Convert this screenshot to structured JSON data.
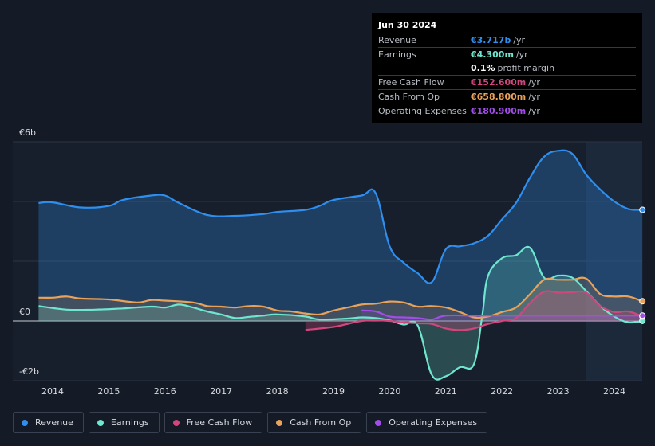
{
  "tooltip": {
    "date": "Jun 30 2024",
    "rows": [
      {
        "label": "Revenue",
        "value": "€3.717b",
        "unit": "/yr",
        "color": "#2e8ff0"
      },
      {
        "label": "Earnings",
        "value": "€4.300m",
        "unit": "/yr",
        "color": "#6ee6d0"
      },
      {
        "label": "",
        "value": "0.1%",
        "unit": "profit margin",
        "color": "#ffffff"
      },
      {
        "label": "Free Cash Flow",
        "value": "€152.600m",
        "unit": "/yr",
        "color": "#d1467c"
      },
      {
        "label": "Cash From Op",
        "value": "€658.800m",
        "unit": "/yr",
        "color": "#e8a25a"
      },
      {
        "label": "Operating Expenses",
        "value": "€180.900m",
        "unit": "/yr",
        "color": "#a24de8"
      }
    ]
  },
  "legend": [
    {
      "label": "Revenue",
      "color": "#2e8ff0"
    },
    {
      "label": "Earnings",
      "color": "#6ee6d0"
    },
    {
      "label": "Free Cash Flow",
      "color": "#d1467c"
    },
    {
      "label": "Cash From Op",
      "color": "#e8a25a"
    },
    {
      "label": "Operating Expenses",
      "color": "#a24de8"
    }
  ],
  "chart_data": {
    "type": "area",
    "title": "",
    "unit": "EUR billions",
    "ylim": [
      -2,
      6
    ],
    "xlim": [
      2013.75,
      2024.5
    ],
    "y_tick_labels": [
      {
        "value": 6,
        "label": "€6b"
      },
      {
        "value": 0,
        "label": "€0"
      },
      {
        "value": -2,
        "label": "-€2b"
      }
    ],
    "x_tick_labels": [
      "2014",
      "2015",
      "2016",
      "2017",
      "2018",
      "2019",
      "2020",
      "2021",
      "2022",
      "2023",
      "2024"
    ],
    "x_tick_values": [
      2014,
      2015,
      2016,
      2017,
      2018,
      2019,
      2020,
      2021,
      2022,
      2023,
      2024
    ],
    "highlight_start": 2023.5,
    "series": [
      {
        "name": "Revenue",
        "color": "#2e8ff0",
        "points": [
          [
            2013.75,
            3.95
          ],
          [
            2014.0,
            3.97
          ],
          [
            2014.5,
            3.8
          ],
          [
            2015.0,
            3.85
          ],
          [
            2015.25,
            4.05
          ],
          [
            2015.75,
            4.2
          ],
          [
            2016.0,
            4.2
          ],
          [
            2016.25,
            3.95
          ],
          [
            2016.75,
            3.55
          ],
          [
            2017.25,
            3.52
          ],
          [
            2017.75,
            3.58
          ],
          [
            2018.0,
            3.65
          ],
          [
            2018.5,
            3.72
          ],
          [
            2018.75,
            3.85
          ],
          [
            2019.0,
            4.05
          ],
          [
            2019.5,
            4.2
          ],
          [
            2019.75,
            4.28
          ],
          [
            2020.0,
            2.5
          ],
          [
            2020.25,
            1.95
          ],
          [
            2020.5,
            1.6
          ],
          [
            2020.75,
            1.3
          ],
          [
            2021.0,
            2.4
          ],
          [
            2021.25,
            2.5
          ],
          [
            2021.5,
            2.6
          ],
          [
            2021.75,
            2.85
          ],
          [
            2022.0,
            3.4
          ],
          [
            2022.25,
            3.95
          ],
          [
            2022.5,
            4.8
          ],
          [
            2022.75,
            5.5
          ],
          [
            2023.0,
            5.7
          ],
          [
            2023.25,
            5.6
          ],
          [
            2023.5,
            4.9
          ],
          [
            2023.75,
            4.4
          ],
          [
            2024.0,
            4.0
          ],
          [
            2024.25,
            3.75
          ],
          [
            2024.5,
            3.72
          ]
        ]
      },
      {
        "name": "Earnings",
        "color": "#6ee6d0",
        "points": [
          [
            2013.75,
            0.5
          ],
          [
            2014.25,
            0.38
          ],
          [
            2014.75,
            0.38
          ],
          [
            2015.25,
            0.42
          ],
          [
            2015.75,
            0.48
          ],
          [
            2016.0,
            0.45
          ],
          [
            2016.25,
            0.55
          ],
          [
            2016.5,
            0.45
          ],
          [
            2016.75,
            0.32
          ],
          [
            2017.0,
            0.22
          ],
          [
            2017.25,
            0.1
          ],
          [
            2017.5,
            0.14
          ],
          [
            2017.75,
            0.18
          ],
          [
            2018.0,
            0.22
          ],
          [
            2018.5,
            0.15
          ],
          [
            2018.75,
            0.05
          ],
          [
            2019.25,
            0.08
          ],
          [
            2019.5,
            0.12
          ],
          [
            2019.75,
            0.1
          ],
          [
            2020.0,
            0.02
          ],
          [
            2020.25,
            -0.12
          ],
          [
            2020.5,
            -0.15
          ],
          [
            2020.75,
            -1.8
          ],
          [
            2021.0,
            -1.85
          ],
          [
            2021.25,
            -1.55
          ],
          [
            2021.5,
            -1.45
          ],
          [
            2021.65,
            0.2
          ],
          [
            2021.75,
            1.5
          ],
          [
            2022.0,
            2.1
          ],
          [
            2022.25,
            2.2
          ],
          [
            2022.5,
            2.45
          ],
          [
            2022.75,
            1.45
          ],
          [
            2023.0,
            1.52
          ],
          [
            2023.25,
            1.45
          ],
          [
            2023.5,
            1.0
          ],
          [
            2023.75,
            0.5
          ],
          [
            2024.0,
            0.15
          ],
          [
            2024.25,
            -0.05
          ],
          [
            2024.5,
            0.004
          ]
        ]
      },
      {
        "name": "Free Cash Flow",
        "color": "#d1467c",
        "points": [
          [
            2018.5,
            -0.3
          ],
          [
            2019.0,
            -0.2
          ],
          [
            2019.25,
            -0.1
          ],
          [
            2019.5,
            0.0
          ],
          [
            2019.75,
            0.02
          ],
          [
            2020.0,
            0.0
          ],
          [
            2020.25,
            -0.05
          ],
          [
            2020.5,
            -0.08
          ],
          [
            2020.75,
            -0.1
          ],
          [
            2021.0,
            -0.25
          ],
          [
            2021.25,
            -0.3
          ],
          [
            2021.5,
            -0.25
          ],
          [
            2021.75,
            -0.1
          ],
          [
            2022.0,
            0.0
          ],
          [
            2022.25,
            0.1
          ],
          [
            2022.5,
            0.6
          ],
          [
            2022.75,
            0.98
          ],
          [
            2023.0,
            0.95
          ],
          [
            2023.25,
            0.96
          ],
          [
            2023.5,
            0.95
          ],
          [
            2023.75,
            0.5
          ],
          [
            2024.0,
            0.3
          ],
          [
            2024.25,
            0.32
          ],
          [
            2024.5,
            0.15
          ]
        ]
      },
      {
        "name": "Cash From Op",
        "color": "#e8a25a",
        "points": [
          [
            2013.75,
            0.78
          ],
          [
            2014.0,
            0.78
          ],
          [
            2014.25,
            0.82
          ],
          [
            2014.5,
            0.75
          ],
          [
            2015.0,
            0.72
          ],
          [
            2015.5,
            0.62
          ],
          [
            2015.75,
            0.7
          ],
          [
            2016.0,
            0.68
          ],
          [
            2016.5,
            0.62
          ],
          [
            2016.75,
            0.5
          ],
          [
            2017.0,
            0.48
          ],
          [
            2017.25,
            0.45
          ],
          [
            2017.5,
            0.5
          ],
          [
            2017.75,
            0.48
          ],
          [
            2018.0,
            0.35
          ],
          [
            2018.25,
            0.32
          ],
          [
            2018.5,
            0.25
          ],
          [
            2018.75,
            0.22
          ],
          [
            2019.0,
            0.35
          ],
          [
            2019.25,
            0.45
          ],
          [
            2019.5,
            0.55
          ],
          [
            2019.75,
            0.58
          ],
          [
            2020.0,
            0.65
          ],
          [
            2020.25,
            0.62
          ],
          [
            2020.5,
            0.48
          ],
          [
            2020.75,
            0.5
          ],
          [
            2021.0,
            0.45
          ],
          [
            2021.25,
            0.3
          ],
          [
            2021.5,
            0.12
          ],
          [
            2021.75,
            0.15
          ],
          [
            2022.0,
            0.3
          ],
          [
            2022.25,
            0.45
          ],
          [
            2022.5,
            0.9
          ],
          [
            2022.75,
            1.38
          ],
          [
            2023.0,
            1.38
          ],
          [
            2023.25,
            1.38
          ],
          [
            2023.5,
            1.42
          ],
          [
            2023.75,
            0.9
          ],
          [
            2024.0,
            0.82
          ],
          [
            2024.25,
            0.82
          ],
          [
            2024.5,
            0.66
          ]
        ]
      },
      {
        "name": "Operating Expenses",
        "color": "#a24de8",
        "points": [
          [
            2019.5,
            0.35
          ],
          [
            2019.75,
            0.32
          ],
          [
            2020.0,
            0.15
          ],
          [
            2020.25,
            0.12
          ],
          [
            2020.5,
            0.1
          ],
          [
            2020.75,
            0.05
          ],
          [
            2021.0,
            0.18
          ],
          [
            2021.5,
            0.18
          ],
          [
            2022.0,
            0.18
          ],
          [
            2022.5,
            0.18
          ],
          [
            2023.0,
            0.18
          ],
          [
            2023.5,
            0.18
          ],
          [
            2024.0,
            0.18
          ],
          [
            2024.5,
            0.18
          ]
        ]
      }
    ]
  }
}
